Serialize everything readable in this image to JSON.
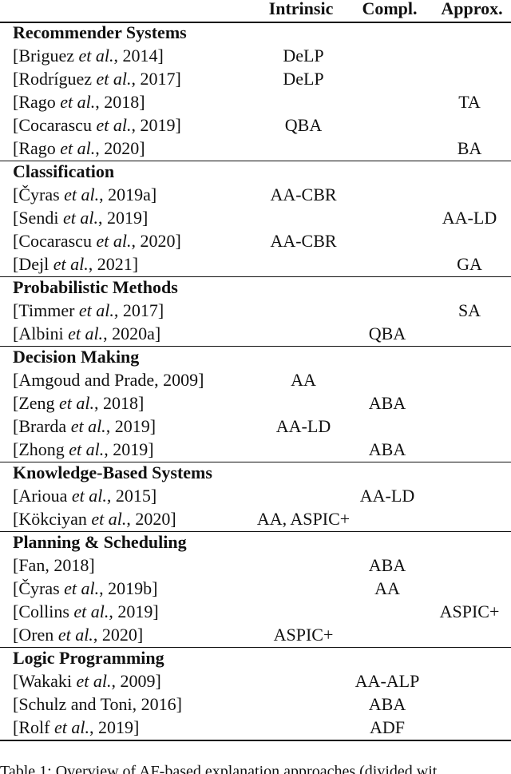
{
  "table": {
    "columns": [
      "Intrinsic",
      "Compl.",
      "Approx."
    ],
    "groups": [
      {
        "heading": "Recommender Systems",
        "rows": [
          {
            "cite": {
              "pre": "[Briguez ",
              "em": "et al.",
              "post": ", 2014]"
            },
            "cells": [
              "DeLP",
              null,
              null
            ]
          },
          {
            "cite": {
              "pre": "[Rodríguez ",
              "em": "et al.",
              "post": ", 2017]"
            },
            "cells": [
              "DeLP",
              null,
              null
            ]
          },
          {
            "cite": {
              "pre": "[Rago ",
              "em": "et al.",
              "post": ", 2018]"
            },
            "cells": [
              null,
              null,
              "TA"
            ]
          },
          {
            "cite": {
              "pre": "[Cocarascu ",
              "em": "et al.",
              "post": ", 2019]"
            },
            "cells": [
              "QBA",
              null,
              null
            ]
          },
          {
            "cite": {
              "pre": "[Rago ",
              "em": "et al.",
              "post": ", 2020]"
            },
            "cells": [
              null,
              null,
              "BA"
            ]
          }
        ]
      },
      {
        "heading": "Classification",
        "rows": [
          {
            "cite": {
              "pre": "[Čyras ",
              "em": "et al.",
              "post": ", 2019a]"
            },
            "cells": [
              "AA-CBR",
              null,
              null
            ]
          },
          {
            "cite": {
              "pre": "[Sendi ",
              "em": "et al.",
              "post": ", 2019]"
            },
            "cells": [
              null,
              null,
              "AA-LD"
            ]
          },
          {
            "cite": {
              "pre": "[Cocarascu ",
              "em": "et al.",
              "post": ", 2020]"
            },
            "cells": [
              "AA-CBR",
              null,
              null
            ]
          },
          {
            "cite": {
              "pre": "[Dejl ",
              "em": "et al.",
              "post": ", 2021]"
            },
            "cells": [
              null,
              null,
              "GA"
            ]
          }
        ]
      },
      {
        "heading": "Probabilistic Methods",
        "rows": [
          {
            "cite": {
              "pre": "[Timmer ",
              "em": "et al.",
              "post": ", 2017]"
            },
            "cells": [
              null,
              null,
              "SA"
            ]
          },
          {
            "cite": {
              "pre": "[Albini ",
              "em": "et al.",
              "post": ", 2020a]"
            },
            "cells": [
              null,
              "QBA",
              null
            ]
          }
        ]
      },
      {
        "heading": "Decision Making",
        "rows": [
          {
            "cite": {
              "pre": "[Amgoud and Prade, 2009]"
            },
            "cells": [
              "AA",
              null,
              null
            ]
          },
          {
            "cite": {
              "pre": "[Zeng ",
              "em": "et al.",
              "post": ", 2018]"
            },
            "cells": [
              null,
              "ABA",
              null
            ]
          },
          {
            "cite": {
              "pre": "[Brarda ",
              "em": "et al.",
              "post": ", 2019]"
            },
            "cells": [
              "AA-LD",
              null,
              null
            ]
          },
          {
            "cite": {
              "pre": "[Zhong ",
              "em": "et al.",
              "post": ", 2019]"
            },
            "cells": [
              null,
              "ABA",
              null
            ]
          }
        ]
      },
      {
        "heading": "Knowledge-Based Systems",
        "rows": [
          {
            "cite": {
              "pre": "[Arioua ",
              "em": "et al.",
              "post": ", 2015]"
            },
            "cells": [
              null,
              "AA-LD",
              null
            ]
          },
          {
            "cite": {
              "pre": "[Kökciyan ",
              "em": "et al.",
              "post": ", 2020]"
            },
            "cells": [
              "AA, ASPIC+",
              null,
              null
            ]
          }
        ]
      },
      {
        "heading": "Planning & Scheduling",
        "rows": [
          {
            "cite": {
              "pre": "[Fan, 2018]"
            },
            "cells": [
              null,
              "ABA",
              null
            ]
          },
          {
            "cite": {
              "pre": "[Čyras ",
              "em": "et al.",
              "post": ", 2019b]"
            },
            "cells": [
              null,
              "AA",
              null
            ]
          },
          {
            "cite": {
              "pre": "[Collins ",
              "em": "et al.",
              "post": ", 2019]"
            },
            "cells": [
              null,
              null,
              "ASPIC+"
            ]
          },
          {
            "cite": {
              "pre": "[Oren ",
              "em": "et al.",
              "post": ", 2020]"
            },
            "cells": [
              "ASPIC+",
              null,
              null
            ]
          }
        ]
      },
      {
        "heading": "Logic Programming",
        "rows": [
          {
            "cite": {
              "pre": "[Wakaki ",
              "em": "et al.",
              "post": ", 2009]"
            },
            "cells": [
              null,
              "AA-ALP",
              null
            ]
          },
          {
            "cite": {
              "pre": "[Schulz and Toni, 2016]"
            },
            "cells": [
              null,
              "ABA",
              null
            ]
          },
          {
            "cite": {
              "pre": "[Rolf ",
              "em": "et al.",
              "post": ", 2019]"
            },
            "cells": [
              null,
              "ADF",
              null
            ]
          }
        ]
      }
    ]
  },
  "caption": "Table 1: Overview of AF-based explanation approaches (divided wit"
}
